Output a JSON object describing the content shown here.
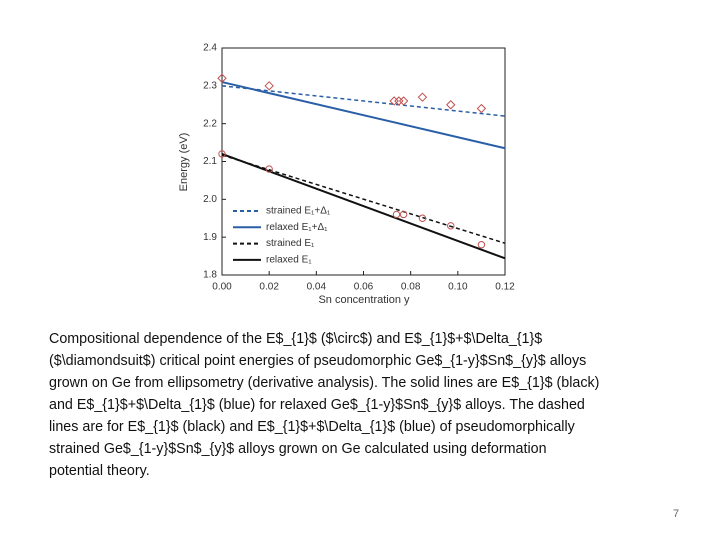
{
  "chart_data": {
    "type": "line",
    "xlabel": "Sn concentration y",
    "ylabel": "Energy (eV)",
    "xlim": [
      0,
      0.12
    ],
    "ylim": [
      1.8,
      2.4
    ],
    "xticks": [
      {
        "value": 0,
        "label": "0.00"
      },
      0.02,
      0.04,
      0.06,
      0.08,
      {
        "value": 0.1,
        "label": "0.10"
      },
      0.12
    ],
    "yticks": [
      1.8,
      1.9,
      {
        "value": 2,
        "label": "2.0"
      },
      2.1,
      2.2,
      2.3,
      2.4
    ],
    "legend": "lower left",
    "series": [
      {
        "name": "strained E₁+Δ₁",
        "color": "#2a5fa8",
        "dashed": true,
        "x": [
          0,
          0.12
        ],
        "values": [
          2.3,
          2.22
        ]
      },
      {
        "name": "relaxed E₁+Δ₁",
        "color": "#2a5fa8",
        "dashed": false,
        "x": [
          0,
          0.12
        ],
        "values": [
          2.31,
          2.135
        ]
      },
      {
        "name": "strained E₁",
        "color": "#111111",
        "dashed": true,
        "x": [
          0,
          0.12
        ],
        "values": [
          2.117,
          1.884
        ]
      },
      {
        "name": "relaxed E₁",
        "color": "#111111",
        "dashed": false,
        "x": [
          0,
          0.12
        ],
        "values": [
          2.12,
          1.844
        ]
      }
    ],
    "points": [
      {
        "marker": "diamond",
        "color": "#c0504d",
        "x": [
          0,
          0.02,
          0.073,
          0.075,
          0.077,
          0.085,
          0.097,
          0.11
        ],
        "values": [
          2.32,
          2.3,
          2.26,
          2.26,
          2.26,
          2.27,
          2.25,
          2.24
        ]
      },
      {
        "marker": "circle",
        "color": "#c0504d",
        "x": [
          0,
          0.02,
          0.074,
          0.077,
          0.085,
          0.097,
          0.11
        ],
        "values": [
          2.12,
          2.08,
          1.96,
          1.96,
          1.95,
          1.93,
          1.88
        ]
      }
    ]
  },
  "caption": [
    "Compositional dependence of the E$_{1}$ ($\\circ$) and E$_{1}$+$\\Delta_{1}$",
    "($\\diamondsuit$) critical point energies of pseudomorphic Ge$_{1-y}$Sn$_{y}$ alloys",
    "grown on Ge from ellipsometry (derivative analysis). The solid lines are E$_{1}$ (black)",
    "and E$_{1}$+$\\Delta_{1}$ (blue) for relaxed Ge$_{1-y}$Sn$_{y}$ alloys. The dashed",
    "lines are for E$_{1}$ (black) and E$_{1}$+$\\Delta_{1}$ (blue) of pseudomorphically",
    "strained Ge$_{1-y}$Sn$_{y}$ alloys grown on Ge calculated using deformation",
    "potential theory."
  ],
  "page_number": "7"
}
